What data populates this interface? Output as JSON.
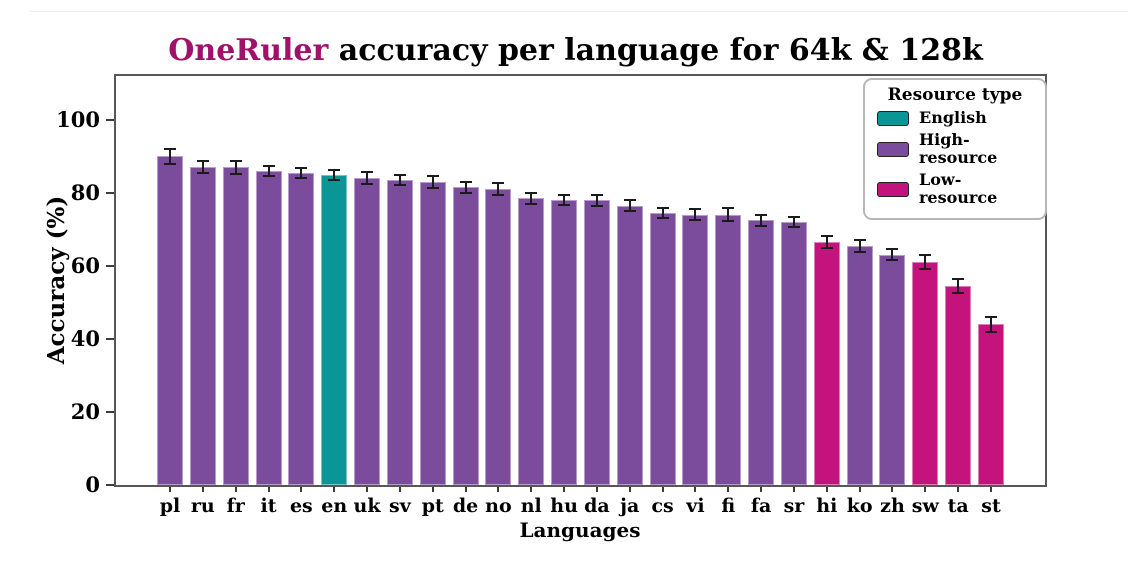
{
  "figure": {
    "title_accent": "OneRuler",
    "title_rest": " accuracy per language for 64k & 128k"
  },
  "colors": {
    "title_accent": "#A0116B",
    "title_rest": "#000000",
    "english": "#0A9596",
    "high_resource": "#7B4B9C",
    "low_resource": "#C5137D",
    "error_bar": "#1b1b1b",
    "spine": "#565656"
  },
  "legend": {
    "title": "Resource type",
    "items": [
      {
        "label": "English",
        "color_key": "english"
      },
      {
        "label": "High-resource",
        "color_key": "high_resource"
      },
      {
        "label": "Low-resource",
        "color_key": "low_resource"
      }
    ]
  },
  "chart_data": {
    "type": "bar",
    "title": "OneRuler accuracy per language for 64k & 128k",
    "xlabel": "Languages",
    "ylabel": "Accuracy (%)",
    "ylim": [
      0,
      112
    ],
    "yticks": [
      0,
      20,
      40,
      60,
      80,
      100
    ],
    "grid": false,
    "legend_position": "upper right",
    "error_bars": true,
    "categories": [
      "pl",
      "ru",
      "fr",
      "it",
      "es",
      "en",
      "uk",
      "sv",
      "pt",
      "de",
      "no",
      "nl",
      "hu",
      "da",
      "ja",
      "cs",
      "vi",
      "fi",
      "fa",
      "sr",
      "hi",
      "ko",
      "zh",
      "sw",
      "ta",
      "st"
    ],
    "values": [
      90,
      87,
      87,
      86,
      85.5,
      85,
      84,
      83.5,
      83,
      81.5,
      81,
      78.5,
      78,
      78,
      76.5,
      74.5,
      74,
      74,
      72.5,
      72,
      66.5,
      65.5,
      63,
      61,
      54.5,
      44
    ],
    "errors": [
      2,
      1.6,
      1.7,
      1.4,
      1.4,
      1.4,
      1.6,
      1.4,
      1.6,
      1.4,
      1.6,
      1.6,
      1.4,
      1.5,
      1.6,
      1.4,
      1.5,
      1.8,
      1.5,
      1.4,
      1.7,
      1.7,
      1.5,
      1.9,
      1.8,
      2
    ],
    "resource_type": [
      "high",
      "high",
      "high",
      "high",
      "high",
      "english",
      "high",
      "high",
      "high",
      "high",
      "high",
      "high",
      "high",
      "high",
      "high",
      "high",
      "high",
      "high",
      "high",
      "high",
      "low",
      "high",
      "high",
      "low",
      "low",
      "low"
    ]
  }
}
